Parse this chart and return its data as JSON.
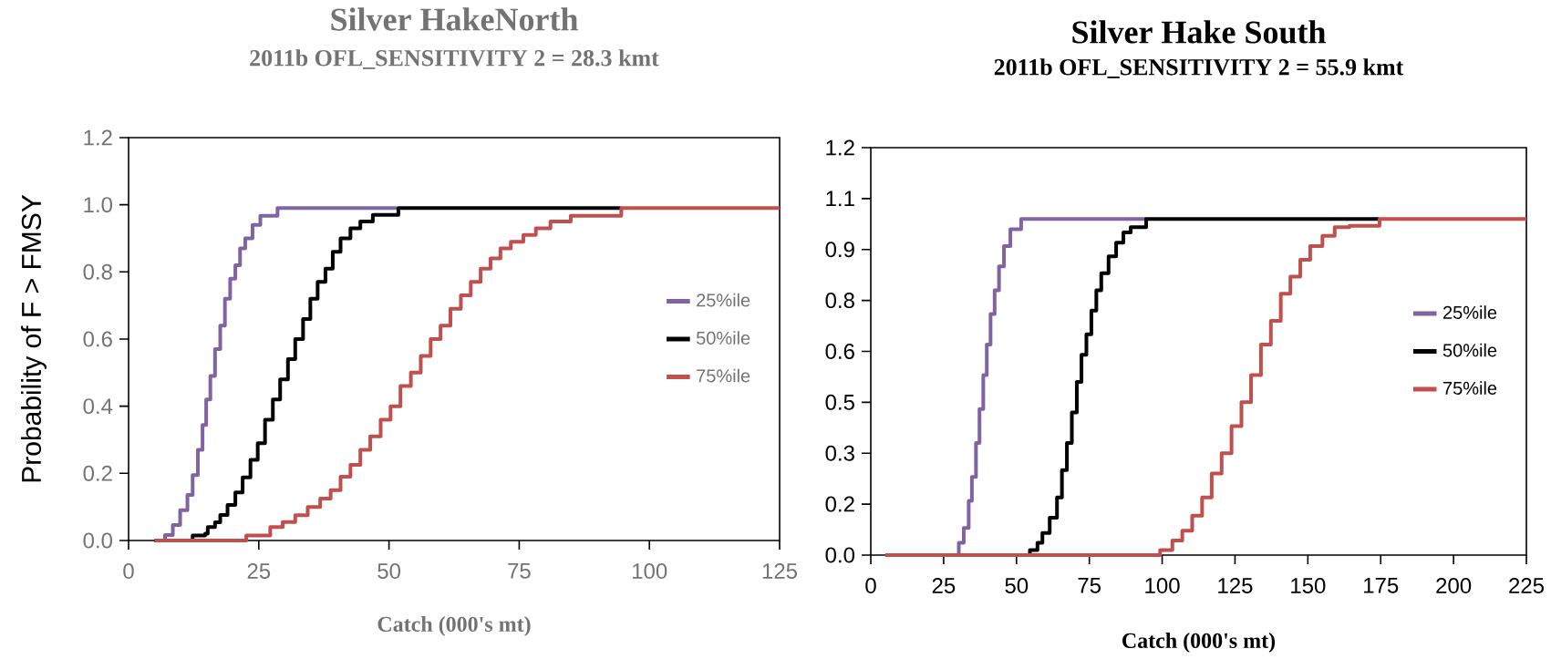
{
  "chart_data": [
    {
      "type": "step",
      "title": "Silver HakeNorth",
      "subtitle": "2011b OFL_SENSITIVITY 2 = 28.3  kmt",
      "xlabel": "Catch (000's mt)",
      "ylabel": "Probability of F > FMSY",
      "xlim": [
        0,
        125
      ],
      "xticks": [
        0,
        25,
        50,
        75,
        100,
        125
      ],
      "ylim": [
        0,
        1.2
      ],
      "yticks": [
        {
          "value": 0,
          "label": "0.0"
        },
        {
          "value": 0.2,
          "label": "0.2"
        },
        {
          "value": 0.4,
          "label": "0.4"
        },
        {
          "value": 0.6,
          "label": "0.6"
        },
        {
          "value": 0.8,
          "label": "0.8"
        },
        {
          "value": 1.0,
          "label": "1.0"
        },
        {
          "value": 1.2,
          "label": "1.2"
        }
      ],
      "legend": "right",
      "grid": false,
      "series": [
        {
          "name": "25%ile",
          "color": "#8064a2",
          "x": [
            5,
            6.7,
            7,
            8.5,
            9.9,
            11.3,
            12.3,
            13.3,
            14.2,
            14.9,
            15.7,
            16.6,
            17.6,
            18.5,
            19.5,
            20.5,
            21.4,
            22.4,
            23.8,
            25.3,
            28.6,
            51.5
          ],
          "values": [
            0,
            0,
            0.016,
            0.046,
            0.09,
            0.136,
            0.195,
            0.27,
            0.344,
            0.42,
            0.49,
            0.57,
            0.64,
            0.72,
            0.78,
            0.82,
            0.87,
            0.9,
            0.94,
            0.967,
            0.99,
            0.99
          ]
        },
        {
          "name": "50%ile",
          "color": "#000000",
          "x": [
            5,
            12.3,
            14.7,
            15.2,
            16.6,
            17.6,
            19,
            20.5,
            21.9,
            23.4,
            24.8,
            26.2,
            27.7,
            29.1,
            30.6,
            32,
            33.5,
            34.9,
            36.3,
            37.8,
            39.2,
            40.7,
            42.6,
            44.5,
            46.9,
            51.8,
            94.5
          ],
          "values": [
            0,
            0.015,
            0.02,
            0.04,
            0.054,
            0.076,
            0.106,
            0.143,
            0.188,
            0.24,
            0.29,
            0.36,
            0.42,
            0.48,
            0.54,
            0.6,
            0.66,
            0.72,
            0.77,
            0.81,
            0.86,
            0.9,
            0.93,
            0.95,
            0.97,
            0.99,
            0.99
          ]
        },
        {
          "name": "75%ile",
          "color": "#c0504d",
          "x": [
            5,
            22.6,
            27.2,
            29.6,
            32,
            34.4,
            36.8,
            38.8,
            40.7,
            42.6,
            44.5,
            46.4,
            48.4,
            50.3,
            52.2,
            54.2,
            56.1,
            58,
            59.9,
            61.8,
            63.8,
            65.7,
            67.6,
            69.5,
            71.4,
            73.4,
            75.8,
            78.2,
            81,
            84.9,
            94.6,
            125
          ],
          "values": [
            0,
            0.015,
            0.04,
            0.055,
            0.075,
            0.1,
            0.125,
            0.15,
            0.19,
            0.225,
            0.27,
            0.31,
            0.36,
            0.4,
            0.46,
            0.5,
            0.55,
            0.6,
            0.64,
            0.69,
            0.73,
            0.77,
            0.81,
            0.84,
            0.87,
            0.89,
            0.91,
            0.93,
            0.95,
            0.967,
            0.99,
            0.99
          ]
        }
      ]
    },
    {
      "type": "step",
      "title": "Silver Hake South",
      "subtitle": "2011b OFL_SENSITIVITY 2  = 55.9 kmt",
      "xlabel": "Catch (000's mt)",
      "xlim": [
        0,
        225
      ],
      "xticks": [
        0,
        25,
        50,
        75,
        100,
        125,
        150,
        175,
        200,
        225
      ],
      "ylim": [
        0,
        1.2
      ],
      "yticks": [
        {
          "value": 0,
          "label": "0.0"
        },
        {
          "value": 0.15,
          "label": "0.2"
        },
        {
          "value": 0.3,
          "label": "0.3"
        },
        {
          "value": 0.45,
          "label": "0.5"
        },
        {
          "value": 0.6,
          "label": "0.6"
        },
        {
          "value": 0.75,
          "label": "0.8"
        },
        {
          "value": 0.9,
          "label": "0.9"
        },
        {
          "value": 1.05,
          "label": "1.1"
        },
        {
          "value": 1.2,
          "label": "1.2"
        }
      ],
      "legend": "right",
      "grid": false,
      "series": [
        {
          "name": "25%ile",
          "color": "#8064a2",
          "x": [
            5,
            29.3,
            30.2,
            31.9,
            33.6,
            34.7,
            36.1,
            37.3,
            38.6,
            39.8,
            41.1,
            42.5,
            44,
            45.7,
            47.9,
            51.6,
            94.3
          ],
          "values": [
            0,
            0,
            0.036,
            0.08,
            0.16,
            0.23,
            0.33,
            0.43,
            0.53,
            0.62,
            0.71,
            0.78,
            0.85,
            0.91,
            0.96,
            0.99,
            0.99
          ]
        },
        {
          "name": "50%ile",
          "color": "#000000",
          "x": [
            5,
            53.8,
            54.6,
            57.2,
            58.9,
            61.4,
            63.9,
            65.6,
            67.3,
            69,
            70.7,
            72.3,
            74,
            75.7,
            77.4,
            79.1,
            81.6,
            84.2,
            86.7,
            89.2,
            94.5,
            174.4
          ],
          "values": [
            0,
            0,
            0.015,
            0.036,
            0.065,
            0.11,
            0.17,
            0.25,
            0.33,
            0.42,
            0.51,
            0.59,
            0.65,
            0.72,
            0.78,
            0.83,
            0.88,
            0.92,
            0.95,
            0.966,
            0.99,
            0.99
          ]
        },
        {
          "name": "75%ile",
          "color": "#c0504d",
          "x": [
            5,
            99.3,
            103.5,
            106.9,
            110.3,
            113.7,
            117,
            120.4,
            123.8,
            127.2,
            130.5,
            133.9,
            137.3,
            140.7,
            144,
            147.4,
            150.8,
            155,
            159.2,
            164.3,
            174.6,
            225
          ],
          "values": [
            0,
            0.015,
            0.043,
            0.072,
            0.116,
            0.17,
            0.24,
            0.3,
            0.38,
            0.45,
            0.53,
            0.62,
            0.69,
            0.77,
            0.82,
            0.87,
            0.91,
            0.94,
            0.966,
            0.97,
            0.99,
            0.99
          ]
        }
      ]
    }
  ]
}
